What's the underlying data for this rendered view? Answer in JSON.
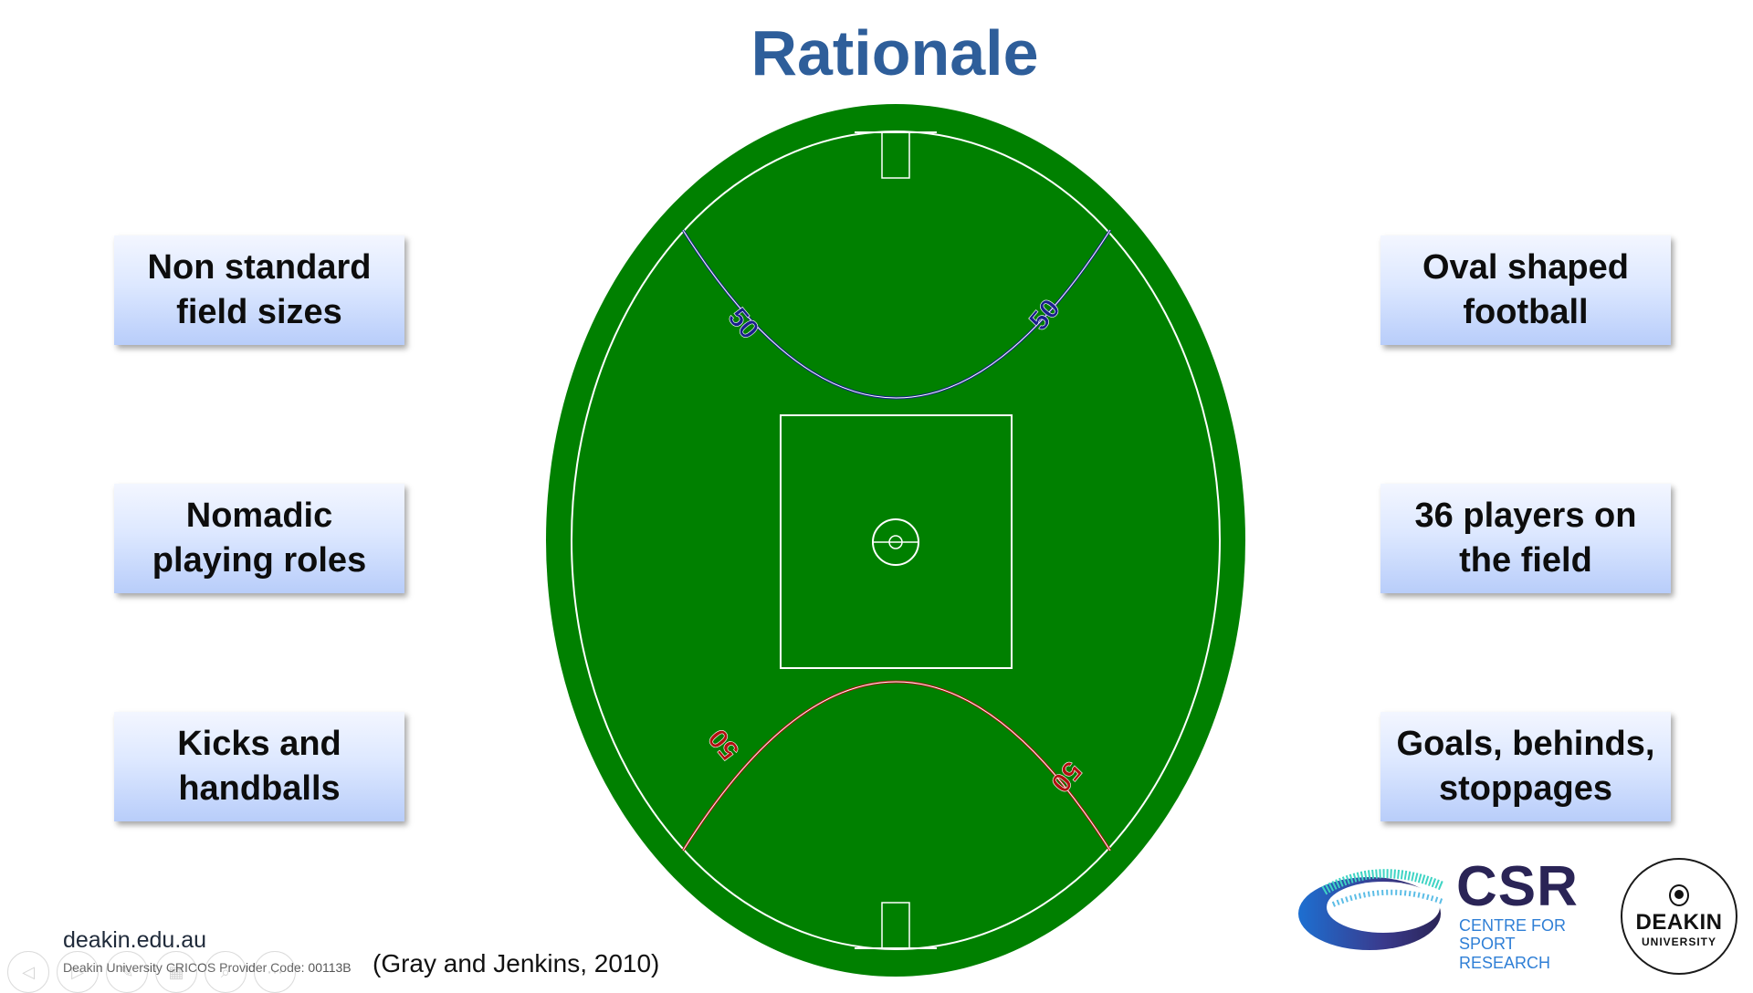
{
  "slide": {
    "title": "Rationale",
    "boxes_left": [
      {
        "text": "Non standard field sizes"
      },
      {
        "text": "Nomadic playing roles"
      },
      {
        "text": "Kicks and handballs"
      }
    ],
    "boxes_right": [
      {
        "text": "Oval shaped football"
      },
      {
        "text": "36 players on the field"
      },
      {
        "text": "Goals, behinds, stoppages"
      }
    ],
    "field": {
      "top_arc_label": "50",
      "bottom_arc_label": "50",
      "colors": {
        "grass": "#008000",
        "lines": "#ffffff",
        "top_arc": "#1a1f8c",
        "bottom_arc": "#b01010"
      }
    },
    "citation": "(Gray and Jenkins, 2010)",
    "footer": {
      "url": "deakin.edu.au",
      "cricos": "Deakin University CRICOS Provider Code: 00113B"
    },
    "logos": {
      "csr_abbrev": "CSR",
      "csr_line1": "CENTRE FOR",
      "csr_line2": "SPORT RESEARCH",
      "deakin_name": "DEAKIN",
      "deakin_sub": "UNIVERSITY"
    },
    "nav_icons": [
      "back-arrow-icon",
      "forward-arrow-icon",
      "pen-icon",
      "slides-icon",
      "zoom-icon",
      "more-icon"
    ]
  }
}
